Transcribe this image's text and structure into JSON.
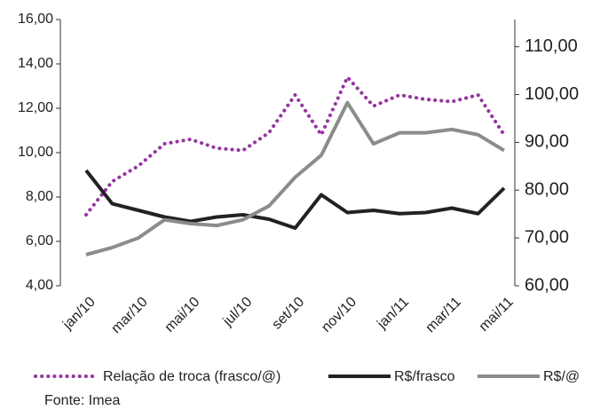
{
  "chart_data": {
    "type": "line",
    "categories": [
      "jan/10",
      null,
      "mar/10",
      null,
      "mai/10",
      null,
      "jul/10",
      null,
      "set/10",
      null,
      "nov/10",
      null,
      "jan/11",
      null,
      "mar/11",
      null,
      "mai/11"
    ],
    "series": [
      {
        "name": "Relação de troca (frasco/@)",
        "color": "#9b2fa8",
        "style": "dotted",
        "values": [
          7.2,
          8.7,
          9.4,
          10.4,
          10.6,
          10.2,
          10.1,
          10.9,
          12.6,
          10.8,
          13.4,
          12.1,
          12.6,
          12.4,
          12.3,
          12.6,
          10.8
        ]
      },
      {
        "name": "R$/frasco",
        "color": "#222222",
        "style": "solid",
        "values": [
          9.2,
          7.7,
          7.4,
          7.1,
          6.9,
          7.1,
          7.2,
          7.0,
          6.6,
          8.1,
          7.3,
          7.4,
          7.25,
          7.3,
          7.5,
          7.25,
          8.4
        ]
      },
      {
        "name": "R$/@",
        "color": "#8c8c8c",
        "style": "solid",
        "axis": "y2",
        "values": [
          66.5,
          68,
          70,
          73.8,
          73,
          72.6,
          73.8,
          76.7,
          82.7,
          87.3,
          98.3,
          89.7,
          92,
          92,
          92.7,
          91.6,
          88.3
        ]
      }
    ],
    "ylim": [
      4,
      16
    ],
    "yticks": [
      {
        "value": 4,
        "label": "4,00"
      },
      {
        "value": 6,
        "label": "6,00"
      },
      {
        "value": 8,
        "label": "8,00"
      },
      {
        "value": 10,
        "label": "10,00"
      },
      {
        "value": 12,
        "label": "12,00"
      },
      {
        "value": 14,
        "label": "14,00"
      },
      {
        "value": 16,
        "label": "16,00"
      }
    ],
    "y2lim": [
      60,
      115.7
    ],
    "y2ticks": [
      {
        "value": 60,
        "label": "60,00"
      },
      {
        "value": 70,
        "label": "70,00"
      },
      {
        "value": 80,
        "label": "80,00"
      },
      {
        "value": 90,
        "label": "90,00"
      },
      {
        "value": 100,
        "label": "100,00"
      },
      {
        "value": 110,
        "label": "110,00"
      }
    ],
    "grid": false,
    "source": "Fonte: Imea"
  }
}
